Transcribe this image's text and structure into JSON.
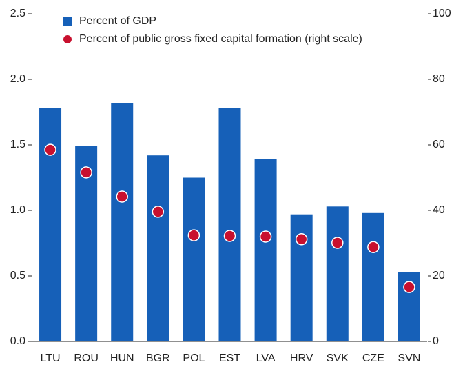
{
  "chart_data": {
    "type": "bar",
    "categories": [
      "LTU",
      "ROU",
      "HUN",
      "BGR",
      "POL",
      "EST",
      "LVA",
      "HRV",
      "SVK",
      "CZE",
      "SVN"
    ],
    "series": [
      {
        "name": "Percent of GDP",
        "color": "#1660b8",
        "values": [
          1.78,
          1.49,
          1.82,
          1.42,
          1.25,
          1.78,
          1.39,
          0.97,
          1.03,
          0.98,
          0.53
        ]
      },
      {
        "name": "Percent of public gross fixed capital formation (right scale)",
        "type": "scatter",
        "axis": "y2",
        "color": "#c8102e",
        "values": [
          58.5,
          51.6,
          44.2,
          39.6,
          32.4,
          32.2,
          32.0,
          31.2,
          30.1,
          28.8,
          16.6
        ]
      }
    ],
    "ylim": [
      0,
      2.5
    ],
    "yticks": [
      {
        "value": 0,
        "label": "0.0"
      },
      0.5,
      {
        "value": 1,
        "label": "1.0"
      },
      1.5,
      {
        "value": 2,
        "label": "2.0"
      },
      2.5
    ],
    "y2lim": [
      0,
      100
    ],
    "y2ticks": [
      0,
      20,
      40,
      60,
      80,
      100
    ]
  }
}
